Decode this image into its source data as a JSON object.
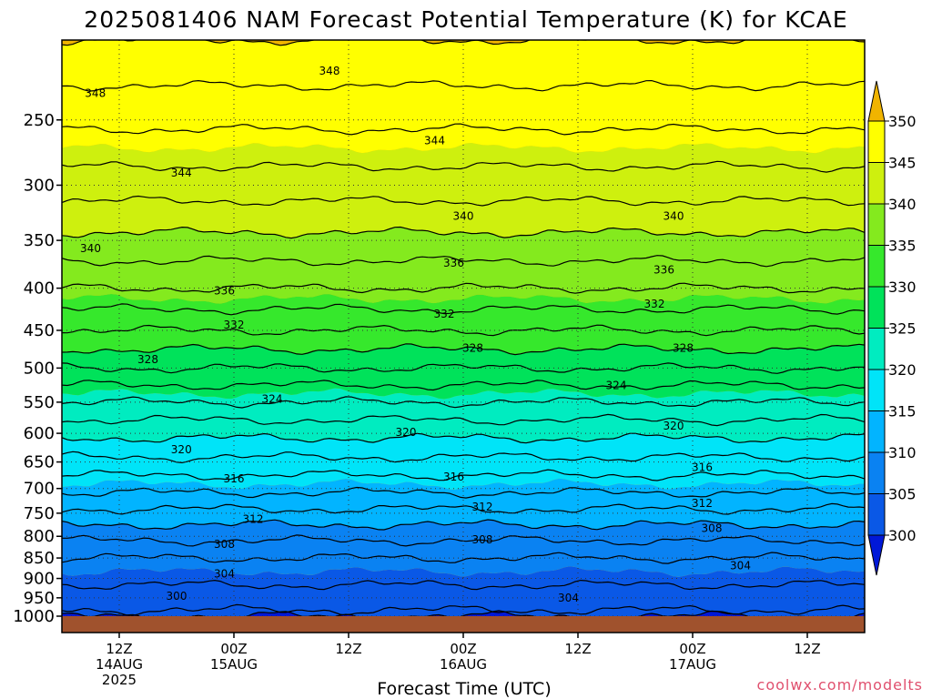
{
  "chart_data": {
    "type": "heatmap",
    "title": "2025081406 NAM Forecast Potential Temperature (K) for KCAE",
    "xlabel": "Forecast Time (UTC)",
    "ylabel": "",
    "y_axis": {
      "scale": "log",
      "inverted": true,
      "units": "hPa",
      "ylim": [
        200,
        1000
      ],
      "ticks": [
        250,
        300,
        350,
        400,
        450,
        500,
        550,
        600,
        650,
        700,
        750,
        800,
        850,
        900,
        950,
        1000
      ],
      "tick_labels": [
        "250",
        "300",
        "350",
        "400",
        "450",
        "500",
        "550",
        "600",
        "650",
        "700",
        "750",
        "800",
        "850",
        "900",
        "950",
        "1000"
      ]
    },
    "x_axis": {
      "units": "forecast hour",
      "xlim": [
        0,
        84
      ],
      "ticks": [
        6,
        18,
        30,
        42,
        54,
        66,
        78
      ],
      "tick_labels": [
        [
          "12Z",
          "14AUG",
          "2025"
        ],
        [
          "00Z",
          "15AUG"
        ],
        [
          "12Z"
        ],
        [
          "00Z",
          "16AUG"
        ],
        [
          "12Z"
        ],
        [
          "00Z",
          "17AUG"
        ],
        [
          "12Z"
        ]
      ]
    },
    "colorbar": {
      "levels": [
        300,
        305,
        310,
        315,
        320,
        325,
        330,
        335,
        340,
        345,
        350
      ],
      "colors": [
        "#0018d8",
        "#0a58e6",
        "#0a82f2",
        "#02b4ff",
        "#00e4f8",
        "#00ecc0",
        "#00e25a",
        "#36e82c",
        "#84ea1e",
        "#cef00e",
        "#ffff00",
        "#f0b400"
      ],
      "tick_labels": [
        "300",
        "305",
        "310",
        "315",
        "320",
        "325",
        "330",
        "335",
        "340",
        "345",
        "350"
      ],
      "extend": "both"
    },
    "grid": true,
    "profile": {
      "description": "approx. potential temperature (K) vs pressure (hPa), roughly steady in time",
      "pressure_hPa": [
        1000,
        950,
        900,
        850,
        800,
        750,
        700,
        650,
        600,
        550,
        500,
        450,
        400,
        350,
        300,
        250,
        200
      ],
      "theta_K": [
        301.5,
        303,
        304.5,
        306,
        308.5,
        311.5,
        314.5,
        317.5,
        320.5,
        324,
        328,
        332,
        336,
        339.5,
        343,
        346.5,
        350
      ]
    },
    "contour_labels": [
      {
        "text": "348",
        "x": 3.5,
        "p": 232
      },
      {
        "text": "348",
        "x": 28.0,
        "p": 218
      },
      {
        "text": "344",
        "x": 12.5,
        "p": 290
      },
      {
        "text": "344",
        "x": 39.0,
        "p": 265
      },
      {
        "text": "340",
        "x": 3.0,
        "p": 358
      },
      {
        "text": "340",
        "x": 42.0,
        "p": 327
      },
      {
        "text": "340",
        "x": 64.0,
        "p": 327
      },
      {
        "text": "336",
        "x": 17.0,
        "p": 403
      },
      {
        "text": "336",
        "x": 41.0,
        "p": 373
      },
      {
        "text": "336",
        "x": 63.0,
        "p": 380
      },
      {
        "text": "332",
        "x": 18.0,
        "p": 443
      },
      {
        "text": "332",
        "x": 40.0,
        "p": 430
      },
      {
        "text": "332",
        "x": 62.0,
        "p": 418
      },
      {
        "text": "328",
        "x": 9.0,
        "p": 488
      },
      {
        "text": "328",
        "x": 43.0,
        "p": 473
      },
      {
        "text": "328",
        "x": 65.0,
        "p": 473
      },
      {
        "text": "324",
        "x": 22.0,
        "p": 545
      },
      {
        "text": "324",
        "x": 58.0,
        "p": 525
      },
      {
        "text": "320",
        "x": 12.5,
        "p": 628
      },
      {
        "text": "320",
        "x": 36.0,
        "p": 598
      },
      {
        "text": "320",
        "x": 64.0,
        "p": 588
      },
      {
        "text": "316",
        "x": 18.0,
        "p": 681
      },
      {
        "text": "316",
        "x": 41.0,
        "p": 678
      },
      {
        "text": "316",
        "x": 67.0,
        "p": 660
      },
      {
        "text": "312",
        "x": 20.0,
        "p": 763
      },
      {
        "text": "312",
        "x": 44.0,
        "p": 737
      },
      {
        "text": "312",
        "x": 67.0,
        "p": 730
      },
      {
        "text": "308",
        "x": 17.0,
        "p": 818
      },
      {
        "text": "308",
        "x": 44.0,
        "p": 808
      },
      {
        "text": "308",
        "x": 68.0,
        "p": 782
      },
      {
        "text": "304",
        "x": 17.0,
        "p": 888
      },
      {
        "text": "304",
        "x": 53.0,
        "p": 950
      },
      {
        "text": "304",
        "x": 71.0,
        "p": 868
      },
      {
        "text": "300",
        "x": 12.0,
        "p": 945
      }
    ],
    "annotation": "coolwx.com/modelts"
  }
}
